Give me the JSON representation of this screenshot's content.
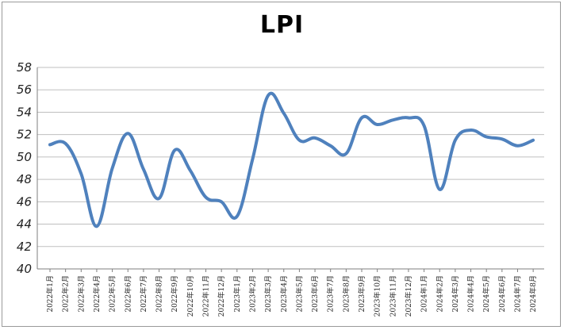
{
  "chart_data": {
    "type": "line",
    "title": "LPI",
    "xlabel": "",
    "ylabel": "",
    "ylim": [
      40,
      58
    ],
    "yticks": [
      40,
      42,
      44,
      46,
      48,
      50,
      52,
      54,
      56,
      58
    ],
    "grid": "horizontal",
    "categories": [
      "2022年1月",
      "2022年2月",
      "2022年3月",
      "2022年4月",
      "2022年5月",
      "2022年6月",
      "2022年7月",
      "2022年8月",
      "2022年9月",
      "2022年10月",
      "2022年11月",
      "2022年12月",
      "2023年1月",
      "2023年2月",
      "2023年3月",
      "2023年4月",
      "2023年5月",
      "2023年6月",
      "2023年7月",
      "2023年8月",
      "2023年9月",
      "2023年10月",
      "2023年11月",
      "2023年12月",
      "2024年1月",
      "2024年2月",
      "2024年3月",
      "2024年4月",
      "2024年5月",
      "2024年6月",
      "2024年7月",
      "2024年8月"
    ],
    "series": [
      {
        "name": "",
        "color": "#4f81bd",
        "values": [
          51.1,
          51.2,
          48.5,
          43.8,
          49.0,
          52.1,
          48.9,
          46.3,
          50.6,
          48.8,
          46.4,
          46.0,
          44.7,
          49.8,
          55.5,
          53.9,
          51.5,
          51.7,
          51.0,
          50.3,
          53.5,
          52.9,
          53.3,
          53.5,
          52.8,
          47.1,
          51.5,
          52.4,
          51.8,
          51.6,
          51.0,
          51.5
        ]
      }
    ]
  }
}
